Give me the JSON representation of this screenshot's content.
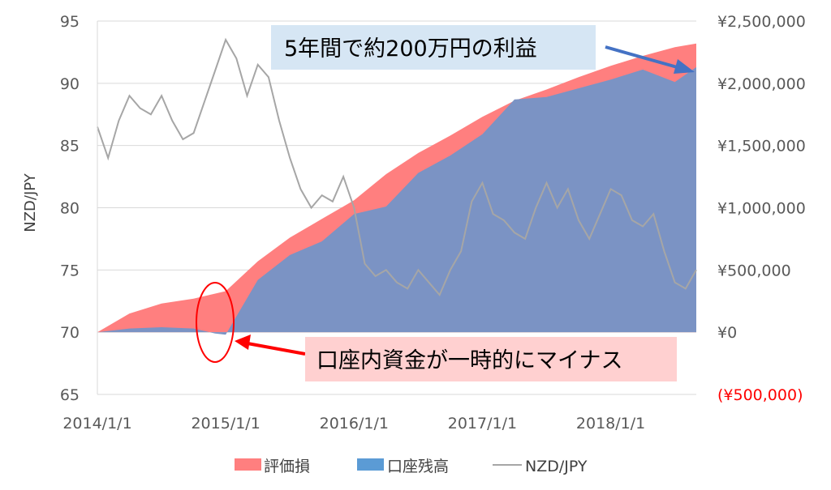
{
  "chart_data": {
    "type": "area",
    "xlabel": "",
    "ylabel": "NZD/JPY",
    "ylim": [
      65,
      95
    ],
    "y2lim": [
      -500000,
      2500000
    ],
    "y_ticks": [
      "95",
      "90",
      "85",
      "80",
      "75",
      "70",
      "65"
    ],
    "y2_ticks": [
      "¥2,500,000",
      "¥2,000,000",
      "¥1,500,000",
      "¥1,000,000",
      "¥500,000",
      "¥0",
      "(¥500,000)"
    ],
    "x_ticks": [
      "2014/1/1",
      "2015/1/1",
      "2016/1/1",
      "2017/1/1",
      "2018/1/1"
    ],
    "x_range": [
      "2014/1/1",
      "2018/9/1"
    ],
    "grid": "horizontal",
    "legend_position": "bottom",
    "colors": {
      "unrealized": "#ff7f7f",
      "balance": "#7b93c4",
      "rate": "#a6a6a6",
      "negative_label": "#ff0000",
      "arrow_blue": "#4472c4",
      "arrow_red": "#ff0000"
    },
    "series": [
      {
        "name": "評価損",
        "axis": "right",
        "kind": "area",
        "x": [
          "2014/1/1",
          "2014/4/1",
          "2014/7/1",
          "2014/10/1",
          "2015/1/1",
          "2015/4/1",
          "2015/7/1",
          "2015/10/1",
          "2016/1/1",
          "2016/4/1",
          "2016/7/1",
          "2016/10/1",
          "2017/1/1",
          "2017/4/1",
          "2017/7/1",
          "2017/10/1",
          "2018/1/1",
          "2018/4/1",
          "2018/7/1",
          "2018/9/1"
        ],
        "values": [
          0,
          150000,
          230000,
          270000,
          330000,
          570000,
          760000,
          910000,
          1060000,
          1270000,
          1440000,
          1580000,
          1730000,
          1860000,
          1950000,
          2050000,
          2140000,
          2220000,
          2290000,
          2320000
        ]
      },
      {
        "name": "口座残高",
        "axis": "right",
        "kind": "area",
        "x": [
          "2014/1/1",
          "2014/4/1",
          "2014/7/1",
          "2014/10/1",
          "2014/12/1",
          "2015/1/1",
          "2015/4/1",
          "2015/7/1",
          "2015/10/1",
          "2016/1/1",
          "2016/4/1",
          "2016/7/1",
          "2016/10/1",
          "2017/1/1",
          "2017/4/1",
          "2017/7/1",
          "2017/10/1",
          "2018/1/1",
          "2018/4/1",
          "2018/7/1",
          "2018/9/1"
        ],
        "values": [
          0,
          30000,
          40000,
          30000,
          -10000,
          -20000,
          420000,
          620000,
          730000,
          950000,
          1010000,
          1280000,
          1420000,
          1590000,
          1870000,
          1890000,
          1960000,
          2030000,
          2110000,
          2010000,
          2130000
        ]
      },
      {
        "name": "NZD/JPY",
        "axis": "left",
        "kind": "line",
        "x": [
          "2014/1/1",
          "2014/2/1",
          "2014/3/1",
          "2014/4/1",
          "2014/5/1",
          "2014/6/1",
          "2014/7/1",
          "2014/8/1",
          "2014/9/1",
          "2014/10/1",
          "2014/11/1",
          "2014/12/1",
          "2015/1/1",
          "2015/2/1",
          "2015/3/1",
          "2015/4/1",
          "2015/5/1",
          "2015/6/1",
          "2015/7/1",
          "2015/8/1",
          "2015/9/1",
          "2015/10/1",
          "2015/11/1",
          "2015/12/1",
          "2016/1/1",
          "2016/2/1",
          "2016/3/1",
          "2016/4/1",
          "2016/5/1",
          "2016/6/1",
          "2016/7/1",
          "2016/8/1",
          "2016/9/1",
          "2016/10/1",
          "2016/11/1",
          "2016/12/1",
          "2017/1/1",
          "2017/2/1",
          "2017/3/1",
          "2017/4/1",
          "2017/5/1",
          "2017/6/1",
          "2017/7/1",
          "2017/8/1",
          "2017/9/1",
          "2017/10/1",
          "2017/11/1",
          "2017/12/1",
          "2018/1/1",
          "2018/2/1",
          "2018/3/1",
          "2018/4/1",
          "2018/5/1",
          "2018/6/1",
          "2018/7/1",
          "2018/8/1",
          "2018/9/1"
        ],
        "values": [
          86.5,
          84.0,
          87.0,
          89.0,
          88.0,
          87.5,
          89.0,
          87.0,
          85.5,
          86.0,
          88.5,
          91.0,
          93.5,
          92.0,
          89.0,
          91.5,
          90.5,
          87.0,
          84.0,
          81.5,
          80.0,
          81.0,
          80.5,
          82.5,
          80.0,
          75.5,
          74.5,
          75.0,
          74.0,
          73.5,
          75.0,
          74.0,
          73.0,
          75.0,
          76.5,
          80.5,
          82.0,
          79.5,
          79.0,
          78.0,
          77.5,
          80.0,
          82.0,
          80.0,
          81.5,
          79.0,
          77.5,
          79.5,
          81.5,
          81.0,
          79.0,
          78.5,
          79.5,
          76.5,
          74.0,
          73.5,
          75.0
        ]
      }
    ],
    "annotations": [
      {
        "id": "profit",
        "text": "5年間で約200万円の利益"
      },
      {
        "id": "negative",
        "text": "口座内資金が一時的にマイナス"
      }
    ],
    "legend": [
      {
        "label": "評価損",
        "series": "評価損"
      },
      {
        "label": "口座残高",
        "series": "口座残高"
      },
      {
        "label": "NZD/JPY",
        "series": "NZD/JPY"
      }
    ]
  }
}
